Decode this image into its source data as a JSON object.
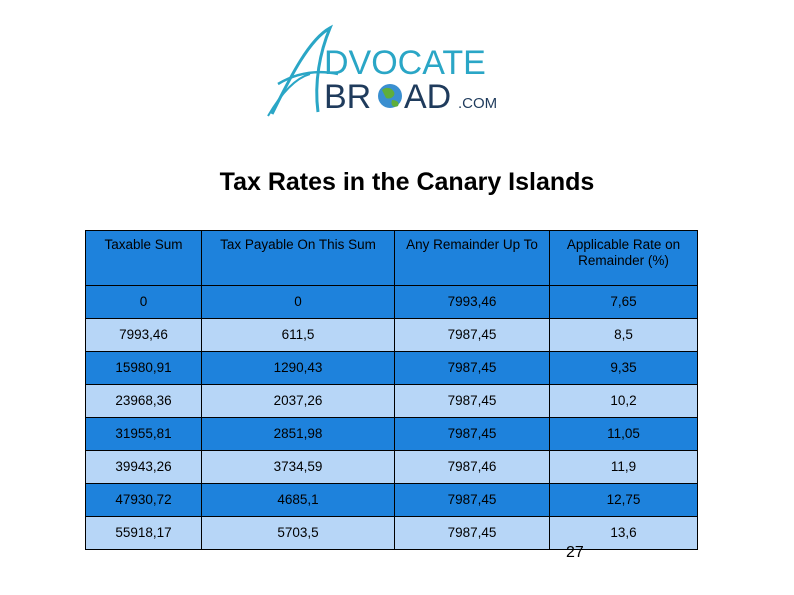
{
  "logo": {
    "line1": "DVOCATE",
    "line2_a": "BR",
    "line2_b": "AD",
    "suffix": ".COM",
    "initial_top": "A",
    "initial_bottom": "A",
    "colors": {
      "teal": "#2aa6c6",
      "navy": "#1f3b5c"
    }
  },
  "title": "Tax Rates in the Canary Islands",
  "table": {
    "headers": [
      "Taxable Sum",
      "Tax Payable On This Sum",
      "Any Remainder Up To",
      "Applicable Rate on Remainder (%)"
    ],
    "rows": [
      [
        "0",
        "0",
        "7993,46",
        "7,65"
      ],
      [
        "7993,46",
        "611,5",
        "7987,45",
        "8,5"
      ],
      [
        "15980,91",
        "1290,43",
        "7987,45",
        "9,35"
      ],
      [
        "23968,36",
        "2037,26",
        "7987,45",
        "10,2"
      ],
      [
        "31955,81",
        "2851,98",
        "7987,45",
        "11,05"
      ],
      [
        "39943,26",
        "3734,59",
        "7987,46",
        "11,9"
      ],
      [
        "47930,72",
        "4685,1",
        "7987,45",
        "12,75"
      ],
      [
        "55918,17",
        "5703,5",
        "7987,45",
        "13,6"
      ]
    ],
    "colors": {
      "dark_row": "#1e82dc",
      "light_row": "#b7d6f7"
    }
  },
  "page_number": "27"
}
